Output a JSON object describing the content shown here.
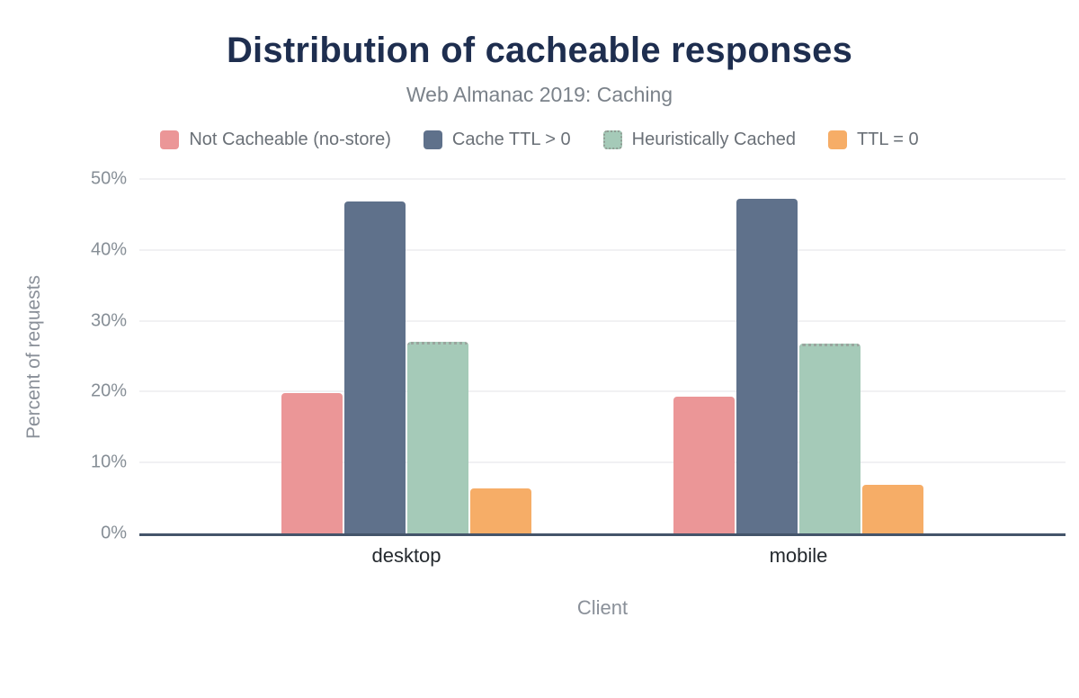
{
  "chart_data": {
    "type": "bar",
    "title": "Distribution of cacheable responses",
    "subtitle": "Web Almanac 2019: Caching",
    "xlabel": "Client",
    "ylabel": "Percent of requests",
    "ylim": [
      0,
      50
    ],
    "yticks": [
      "0%",
      "10%",
      "20%",
      "30%",
      "40%",
      "50%"
    ],
    "grid": true,
    "legend_position": "top",
    "categories": [
      "desktop",
      "mobile"
    ],
    "series": [
      {
        "name": "Not Cacheable (no-store)",
        "color": "#eb9697",
        "values": [
          19.8,
          19.3
        ]
      },
      {
        "name": "Cache TTL > 0",
        "color": "#5f718b",
        "values": [
          46.8,
          47.2
        ]
      },
      {
        "name": "Heuristically Cached",
        "color": "#a5cab8",
        "values": [
          27.0,
          26.8
        ],
        "style": "dotted-outline"
      },
      {
        "name": "TTL = 0",
        "color": "#f6ad67",
        "values": [
          6.3,
          6.8
        ]
      }
    ],
    "colors": {
      "title_text": "#1e2e4f",
      "muted_text": "#868e96",
      "category_label_text": "#24292e",
      "axis_line": "#44546a",
      "gridline": "#f1f1f3",
      "background": "#ffffff"
    }
  }
}
